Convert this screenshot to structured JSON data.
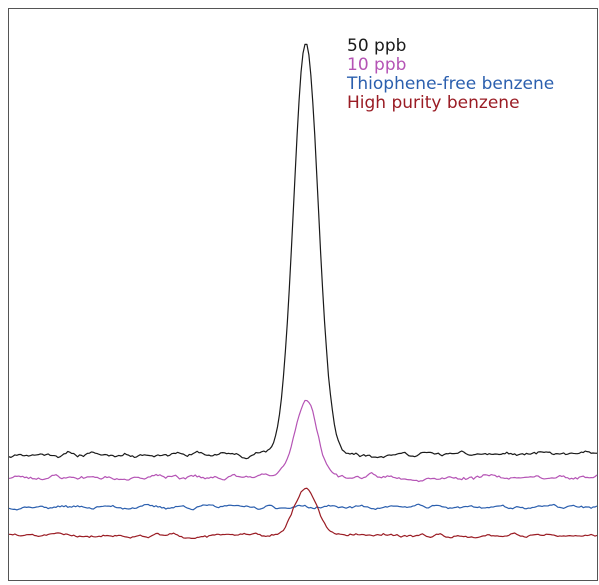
{
  "chart_data": {
    "type": "line",
    "title": "",
    "xlabel": "",
    "ylabel": "",
    "x_range": [
      0,
      100
    ],
    "y_range": [
      0,
      100
    ],
    "grid": false,
    "legend_position": "top-right",
    "axes_visible": false,
    "series": [
      {
        "name": "50 ppb",
        "color": "#1a1a1a",
        "baseline": 22,
        "noise": 0.9,
        "peak_center": 50.5,
        "peak_height": 72,
        "peak_width": 2.1,
        "seed": 11
      },
      {
        "name": "10 ppb",
        "color": "#b554b5",
        "baseline": 18,
        "noise": 0.9,
        "peak_center": 50.5,
        "peak_height": 13.5,
        "peak_width": 1.9,
        "seed": 23
      },
      {
        "name": "Thiophene-free benzene",
        "color": "#2b5fae",
        "baseline": 12.8,
        "noise": 0.7,
        "peak_center": 50.5,
        "peak_height": 0,
        "peak_width": 2,
        "seed": 37
      },
      {
        "name": "High purity benzene",
        "color": "#9a1c24",
        "baseline": 7.8,
        "noise": 0.7,
        "peak_center": 50.5,
        "peak_height": 8.3,
        "peak_width": 1.9,
        "seed": 51
      }
    ]
  }
}
